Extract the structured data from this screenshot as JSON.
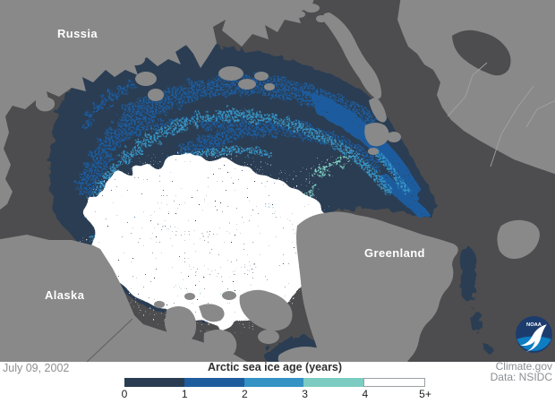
{
  "map": {
    "labels": {
      "russia": "Russia",
      "alaska": "Alaska",
      "greenland": "Greenland"
    },
    "date": "July 09, 2002",
    "credit_line1": "Climate.gov",
    "credit_line2": "Data: NSIDC",
    "noaa": "NOAA"
  },
  "legend": {
    "title": "Arctic sea ice age (years)",
    "ticks": [
      "0",
      "1",
      "2",
      "3",
      "4",
      "5+"
    ],
    "segments": [
      {
        "range": "0-1",
        "color": "#2a3c52"
      },
      {
        "range": "1-2",
        "color": "#1e5c9e"
      },
      {
        "range": "2-3",
        "color": "#3492c4"
      },
      {
        "range": "3-4",
        "color": "#7cccc1"
      },
      {
        "range": "4-5+",
        "color": "#ffffff"
      }
    ]
  },
  "palette": {
    "ocean": "#4d4d4f",
    "land": "#898989",
    "land_line": "#a2a2a2",
    "ice0": "#2a3c52",
    "ice1": "#1e5c9e",
    "ice2": "#3492c4",
    "ice3": "#7cccc1",
    "ice4": "#ffffff",
    "noaa_dark": "#1d3c6e",
    "noaa_blue": "#0e7dc2"
  }
}
